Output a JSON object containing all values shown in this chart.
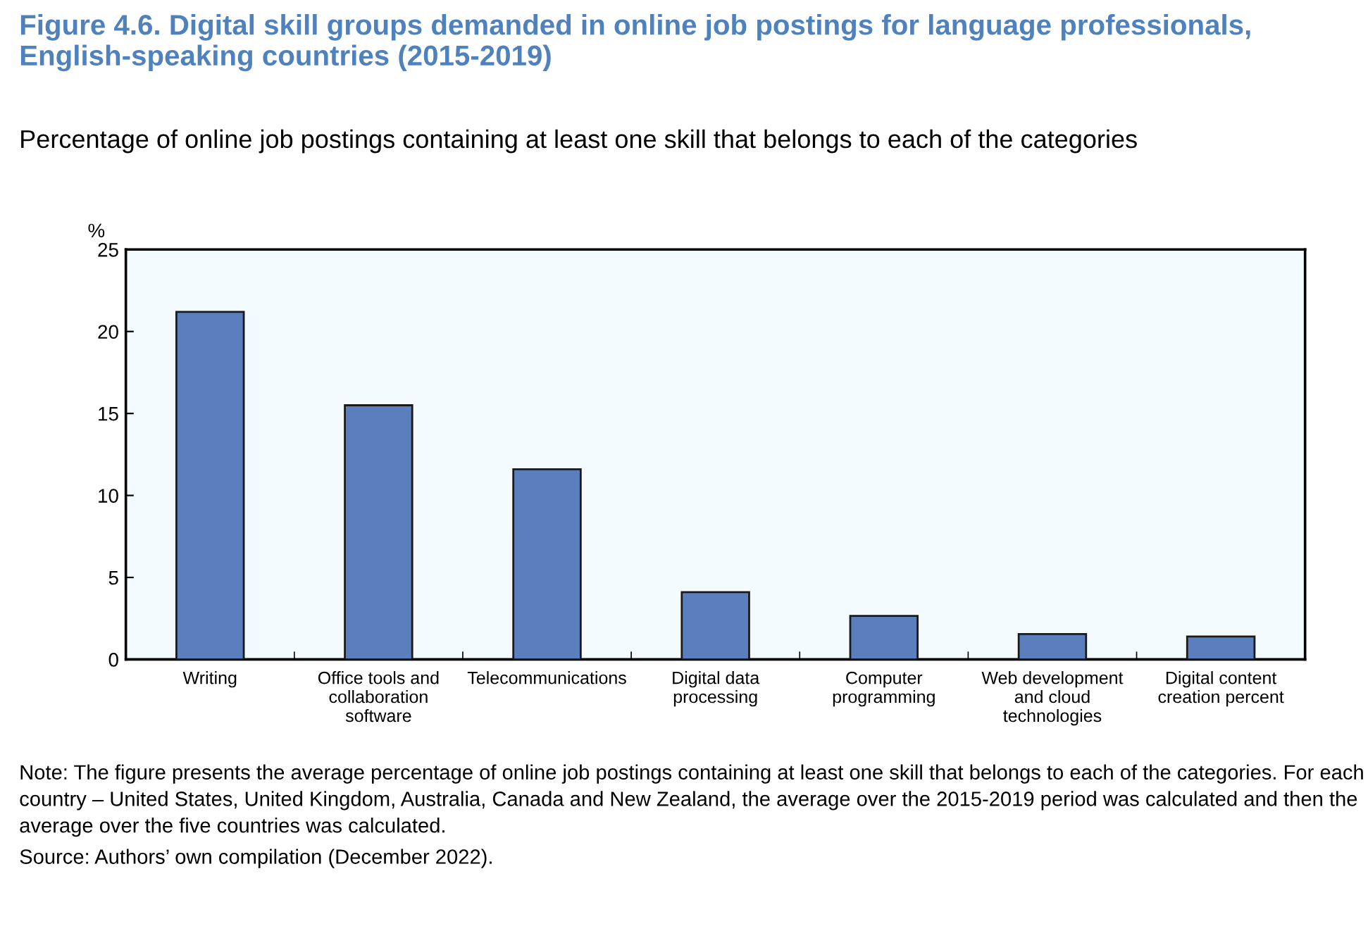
{
  "chart_data": {
    "type": "bar",
    "title": "Figure 4.6. Digital skill groups demanded in online job postings for language professionals, English-speaking countries (2015-2019)",
    "subtitle": "Percentage of online job postings containing at least one skill that belongs to each of the categories",
    "ylabel": "%",
    "categories": [
      "Writing",
      "Office tools and\ncollaboration\nsoftware",
      "Telecommunications",
      "Digital data\nprocessing",
      "Computer\nprogramming",
      "Web development\nand cloud\ntechnologies",
      "Digital content\ncreation percent"
    ],
    "values": [
      21.2,
      15.5,
      11.6,
      4.1,
      2.65,
      1.55,
      1.4
    ],
    "color": "#5b7fbd",
    "ylim": [
      0,
      25
    ],
    "yticks": [
      0,
      5,
      10,
      15,
      20,
      25
    ],
    "grid": false,
    "annotations": [
      "Note: The figure presents the average percentage of online job postings containing at least one skill that belongs to each of the categories. For each country – United States, United Kingdom, Australia, Canada and New Zealand, the average over the 2015-2019 period was calculated and then the average over the five countries was calculated.",
      "Source: Authors’ own compilation (December 2022)."
    ]
  }
}
